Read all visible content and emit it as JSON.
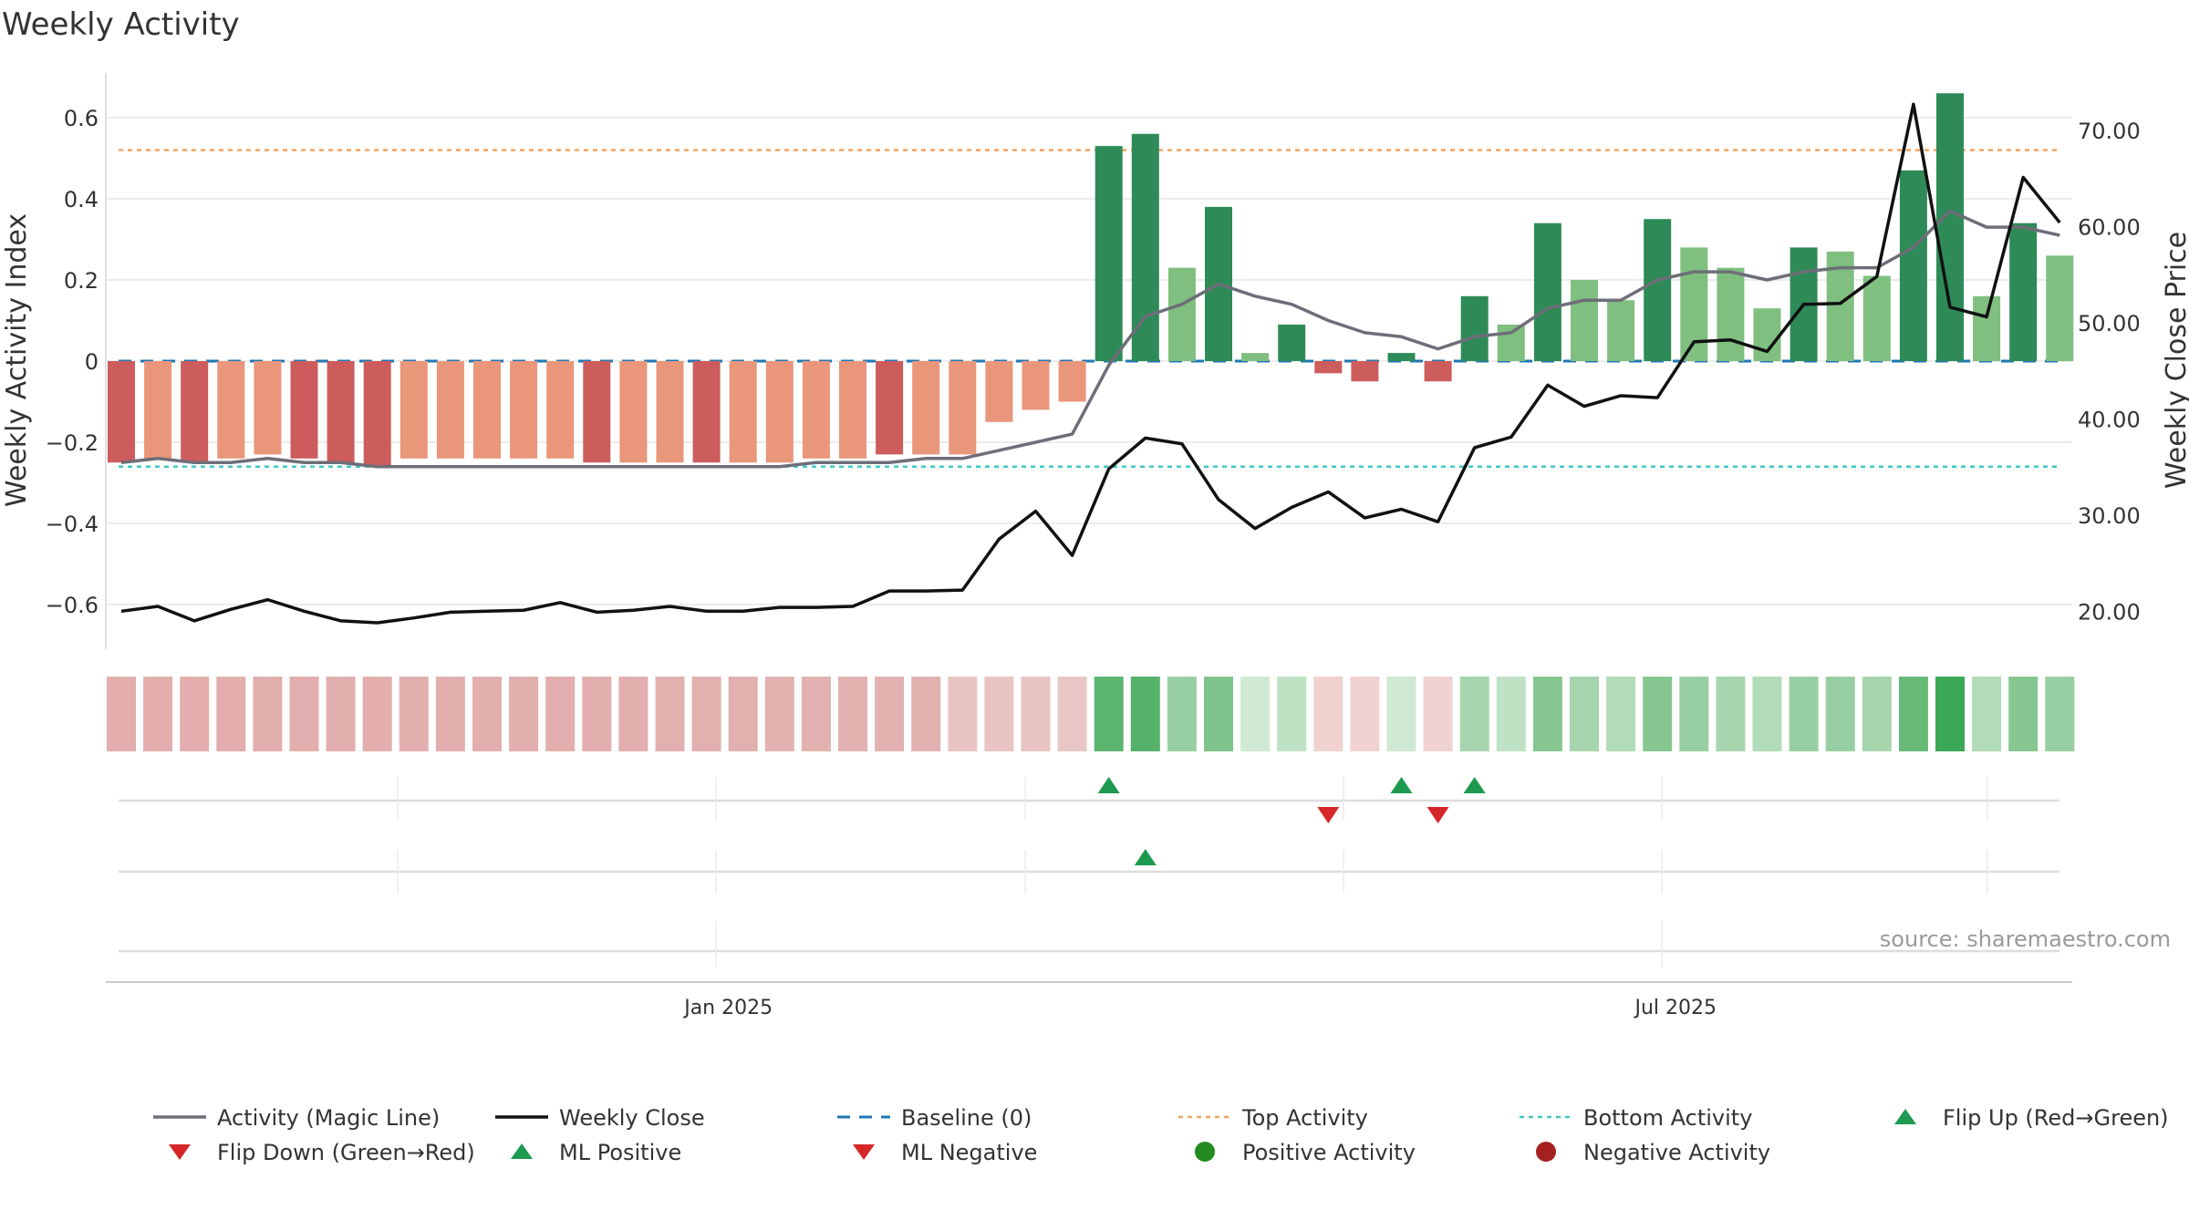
{
  "colors": {
    "strong_red": "#cd5c5c",
    "light_red": "#e9967a",
    "strong_green": "#2e8b57",
    "light_green": "#7fbf7f",
    "magic_line": "#6e6e78",
    "close_line": "#111111",
    "baseline": "#1f77b4",
    "top_activity": "#f4a460",
    "bottom_activity": "#40c8c8",
    "flip_up": "#1e9a50",
    "flip_down": "#d62728",
    "positive_dot": "#228b22",
    "negative_dot": "#a52020",
    "grid": "#e6e6e6"
  },
  "chart_data": {
    "type": "bar",
    "title": "Weekly Activity",
    "ylabel": "Weekly Activity Index",
    "y2label": "Weekly Close Price",
    "ylim": [
      -0.71,
      0.71
    ],
    "y2lim": [
      15.0,
      75.0
    ],
    "yticks": [
      {
        "v": 0.6,
        "label": "0.6"
      },
      {
        "v": 0.4,
        "label": "0.4"
      },
      {
        "v": 0.2,
        "label": "0.2"
      },
      {
        "v": 0,
        "label": "0"
      },
      {
        "v": -0.2,
        "label": "−0.2"
      },
      {
        "v": -0.4,
        "label": "−0.4"
      },
      {
        "v": -0.6,
        "label": "−0.6"
      }
    ],
    "y2ticks": [
      "70.00",
      "60.00",
      "50.00",
      "40.00",
      "30.00",
      "20.00"
    ],
    "xticks": [
      {
        "week": 16.6,
        "label": "Jan 2025"
      },
      {
        "week": 42.5,
        "label": "Jul 2025"
      }
    ],
    "baseline": 0,
    "top_activity": 0.52,
    "bottom_activity": -0.26,
    "activity": [
      -0.25,
      -0.24,
      -0.25,
      -0.24,
      -0.23,
      -0.24,
      -0.25,
      -0.26,
      -0.24,
      -0.24,
      -0.24,
      -0.24,
      -0.24,
      -0.25,
      -0.25,
      -0.25,
      -0.25,
      -0.25,
      -0.25,
      -0.24,
      -0.24,
      -0.23,
      -0.23,
      -0.23,
      -0.15,
      -0.12,
      -0.1,
      0.53,
      0.56,
      0.23,
      0.38,
      0.02,
      0.09,
      -0.03,
      -0.05,
      0.02,
      -0.05,
      0.16,
      0.09,
      0.34,
      0.2,
      0.15,
      0.35,
      0.28,
      0.23,
      0.13,
      0.28,
      0.27,
      0.21,
      0.47,
      0.66,
      0.16,
      0.34,
      0.26
    ],
    "strong": [
      1,
      0,
      1,
      0,
      0,
      1,
      1,
      1,
      0,
      0,
      0,
      0,
      0,
      1,
      0,
      0,
      1,
      0,
      0,
      0,
      0,
      1,
      0,
      0,
      0,
      0,
      0,
      1,
      1,
      0,
      1,
      0,
      1,
      1,
      1,
      1,
      1,
      1,
      0,
      1,
      0,
      0,
      1,
      0,
      0,
      0,
      1,
      0,
      0,
      1,
      1,
      0,
      1,
      0
    ],
    "magic_line": [
      -0.25,
      -0.24,
      -0.25,
      -0.25,
      -0.24,
      -0.25,
      -0.25,
      -0.26,
      -0.26,
      -0.26,
      -0.26,
      -0.26,
      -0.26,
      -0.26,
      -0.26,
      -0.26,
      -0.26,
      -0.26,
      -0.26,
      -0.25,
      -0.25,
      -0.25,
      -0.24,
      -0.24,
      -0.22,
      -0.2,
      -0.18,
      -0.01,
      0.11,
      0.14,
      0.19,
      0.16,
      0.14,
      0.1,
      0.07,
      0.06,
      0.03,
      0.06,
      0.07,
      0.13,
      0.15,
      0.15,
      0.2,
      0.22,
      0.22,
      0.2,
      0.22,
      0.23,
      0.23,
      0.28,
      0.37,
      0.33,
      0.33,
      0.31
    ],
    "weekly_close": [
      20.0,
      20.5,
      19.0,
      20.2,
      21.2,
      20.0,
      19.0,
      18.8,
      19.3,
      19.9,
      20.0,
      20.1,
      20.9,
      19.9,
      20.1,
      20.5,
      20.0,
      20.0,
      20.4,
      20.4,
      20.5,
      22.1,
      22.1,
      22.2,
      27.5,
      30.4,
      25.8,
      34.8,
      38.0,
      37.4,
      31.6,
      28.6,
      30.8,
      32.4,
      29.7,
      30.6,
      29.3,
      37.0,
      38.1,
      43.5,
      41.3,
      42.4,
      42.2,
      48.0,
      48.2,
      47.0,
      51.9,
      52.0,
      54.8,
      72.7,
      51.6,
      50.6,
      65.1,
      60.4
    ],
    "heat_strip": [
      "#e3aead",
      "#e3aead",
      "#e3aead",
      "#e3aead",
      "#e3aeae",
      "#e3aeae",
      "#e3aeae",
      "#e3aead",
      "#e3aeae",
      "#e3aeae",
      "#e3aeae",
      "#e3aeae",
      "#e3aeae",
      "#e3aeae",
      "#e3aeae",
      "#e2b0af",
      "#e2b0af",
      "#e2b0af",
      "#e2b1b0",
      "#e2b1b0",
      "#e2b1b0",
      "#e2b1b0",
      "#e2b2b1",
      "#e8c4c2",
      "#e8c4c2",
      "#e8c4c2",
      "#e8c6c5",
      "#5cb56f",
      "#56b26b",
      "#98cfa2",
      "#7fc48c",
      "#d0e9d2",
      "#bfe1c4",
      "#f0d2d1",
      "#f0d2d1",
      "#d0e9d2",
      "#f0d2d1",
      "#a6d5ae",
      "#bfe1c4",
      "#86c791",
      "#a6d5ae",
      "#b2dbb9",
      "#86c791",
      "#98cfa2",
      "#a6d5ae",
      "#b2dbb9",
      "#98cfa2",
      "#98cfa2",
      "#a6d5ae",
      "#67ba78",
      "#3aa856",
      "#b2dbb9",
      "#86c791",
      "#98cfa2"
    ],
    "flip_up_weeks": [
      27,
      35,
      37
    ],
    "flip_down_weeks": [
      33,
      36
    ],
    "ml_positive_weeks": [
      28
    ],
    "ml_negative_weeks": []
  },
  "legend": [
    {
      "key": "magic",
      "label": "Activity (Magic Line)"
    },
    {
      "key": "close",
      "label": "Weekly Close"
    },
    {
      "key": "baseline",
      "label": "Baseline (0)"
    },
    {
      "key": "top",
      "label": "Top Activity"
    },
    {
      "key": "bottom",
      "label": "Bottom Activity"
    },
    {
      "key": "flipup",
      "label": "Flip Up (Red→Green)"
    },
    {
      "key": "flipdown",
      "label": "Flip Down (Green→Red)"
    },
    {
      "key": "mlpos",
      "label": "ML Positive"
    },
    {
      "key": "mlneg",
      "label": "ML Negative"
    },
    {
      "key": "posdot",
      "label": "Positive Activity"
    },
    {
      "key": "negdot",
      "label": "Negative Activity"
    }
  ],
  "source": "source: sharemaestro.com"
}
